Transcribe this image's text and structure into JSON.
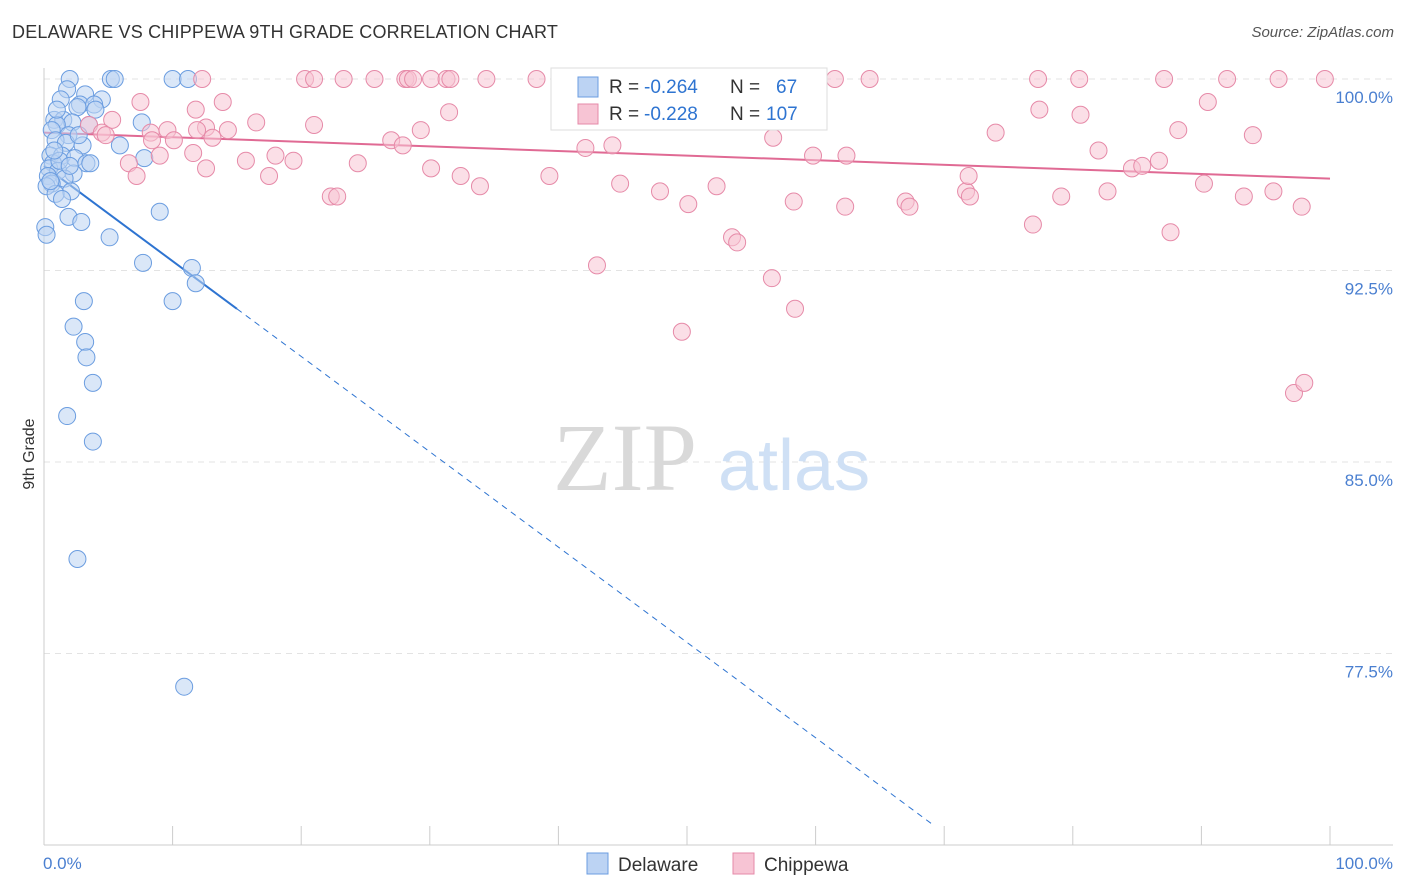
{
  "chart_data": {
    "type": "scatter",
    "title": "DELAWARE VS CHIPPEWA 9TH GRADE CORRELATION CHART",
    "source": "Source: ZipAtlas.com",
    "xlabel": "",
    "ylabel": "9th Grade",
    "xlim": [
      0,
      100
    ],
    "ylim": [
      70.5,
      101.5
    ],
    "y_ticks": [
      {
        "value": 100.0,
        "label": "100.0%"
      },
      {
        "value": 92.5,
        "label": "92.5%"
      },
      {
        "value": 85.0,
        "label": "85.0%"
      },
      {
        "value": 77.5,
        "label": "77.5%"
      }
    ],
    "x_tick_labels": {
      "left": "0.0%",
      "right": "100.0%"
    },
    "grid": true,
    "watermark": {
      "zip": "ZIP",
      "atlas": "atlas"
    },
    "legend": {
      "position": "top-center",
      "entries": [
        {
          "r_label": "R =",
          "r_value": "-0.264",
          "n_label": "N =",
          "n_value": "67"
        },
        {
          "r_label": "R =",
          "r_value": "-0.228",
          "n_label": "N =",
          "n_value": "107"
        }
      ]
    },
    "series": [
      {
        "name": "Delaware",
        "color": "#6b9de0",
        "fill": "#bcd3f3",
        "line_color": "#2e74d1",
        "trend": {
          "x0": 0,
          "y0": 96.6,
          "x1": 15,
          "y1": 91.0,
          "dash_to_x": 69
        },
        "points": [
          [
            2.0,
            100
          ],
          [
            5.2,
            100
          ],
          [
            5.5,
            100
          ],
          [
            10.0,
            100
          ],
          [
            11.2,
            100
          ],
          [
            1.8,
            99.6
          ],
          [
            3.2,
            99.4
          ],
          [
            1.3,
            99.2
          ],
          [
            4.5,
            99.2
          ],
          [
            2.8,
            99.0
          ],
          [
            3.9,
            99.0
          ],
          [
            2.6,
            98.9
          ],
          [
            0.8,
            98.4
          ],
          [
            1.5,
            98.4
          ],
          [
            2.2,
            98.3
          ],
          [
            1.0,
            98.2
          ],
          [
            3.5,
            98.2
          ],
          [
            0.6,
            98.0
          ],
          [
            1.9,
            97.8
          ],
          [
            7.6,
            98.3
          ],
          [
            0.9,
            97.6
          ],
          [
            1.7,
            97.5
          ],
          [
            3.0,
            97.4
          ],
          [
            5.9,
            97.4
          ],
          [
            0.5,
            97.0
          ],
          [
            1.4,
            97.0
          ],
          [
            2.4,
            96.9
          ],
          [
            7.8,
            96.9
          ],
          [
            0.7,
            96.7
          ],
          [
            3.3,
            96.7
          ],
          [
            3.6,
            96.7
          ],
          [
            0.4,
            96.5
          ],
          [
            1.1,
            96.4
          ],
          [
            2.3,
            96.3
          ],
          [
            0.3,
            96.2
          ],
          [
            1.6,
            96.1
          ],
          [
            0.6,
            95.9
          ],
          [
            0.2,
            95.8
          ],
          [
            2.1,
            95.6
          ],
          [
            0.9,
            95.5
          ],
          [
            9.0,
            94.8
          ],
          [
            1.9,
            94.6
          ],
          [
            2.9,
            94.4
          ],
          [
            0.1,
            94.2
          ],
          [
            0.2,
            93.9
          ],
          [
            5.1,
            93.8
          ],
          [
            7.7,
            92.8
          ],
          [
            11.5,
            92.6
          ],
          [
            11.8,
            92.0
          ],
          [
            3.1,
            91.3
          ],
          [
            10.0,
            91.3
          ],
          [
            2.3,
            90.3
          ],
          [
            3.2,
            89.7
          ],
          [
            3.3,
            89.1
          ],
          [
            3.8,
            88.1
          ],
          [
            1.8,
            86.8
          ],
          [
            3.8,
            85.8
          ],
          [
            2.6,
            81.2
          ],
          [
            10.9,
            76.2
          ],
          [
            0.5,
            96.0
          ],
          [
            1.2,
            96.8
          ],
          [
            2.7,
            97.8
          ],
          [
            4.0,
            98.8
          ],
          [
            1.4,
            95.3
          ],
          [
            0.8,
            97.2
          ],
          [
            2.0,
            96.6
          ],
          [
            1.0,
            98.8
          ]
        ]
      },
      {
        "name": "Chippewa",
        "color": "#e68aa8",
        "fill": "#f7c4d4",
        "line_color": "#e06a94",
        "trend": {
          "x0": 0,
          "y0": 97.9,
          "x1": 100,
          "y1": 96.1
        },
        "points": [
          [
            12.3,
            100
          ],
          [
            20.3,
            100
          ],
          [
            21.0,
            100
          ],
          [
            23.3,
            100
          ],
          [
            25.7,
            100
          ],
          [
            28.1,
            100
          ],
          [
            28.3,
            100
          ],
          [
            28.7,
            100
          ],
          [
            30.1,
            100
          ],
          [
            31.3,
            100
          ],
          [
            31.6,
            100
          ],
          [
            34.4,
            100
          ],
          [
            38.3,
            100
          ],
          [
            42.8,
            100
          ],
          [
            46.5,
            100
          ],
          [
            51.3,
            100
          ],
          [
            54.8,
            100
          ],
          [
            57.0,
            100
          ],
          [
            61.5,
            100
          ],
          [
            64.2,
            100
          ],
          [
            77.3,
            100
          ],
          [
            80.5,
            100
          ],
          [
            87.1,
            100
          ],
          [
            92.0,
            100
          ],
          [
            96.0,
            100
          ],
          [
            99.6,
            100
          ],
          [
            7.5,
            99.1
          ],
          [
            13.9,
            99.1
          ],
          [
            11.8,
            98.8
          ],
          [
            31.5,
            98.7
          ],
          [
            42.8,
            98.6
          ],
          [
            58.3,
            98.6
          ],
          [
            77.4,
            98.8
          ],
          [
            80.6,
            98.6
          ],
          [
            90.5,
            99.1
          ],
          [
            5.3,
            98.4
          ],
          [
            16.5,
            98.3
          ],
          [
            21.0,
            98.2
          ],
          [
            29.3,
            98.0
          ],
          [
            12.6,
            98.1
          ],
          [
            11.9,
            98.0
          ],
          [
            14.3,
            98.0
          ],
          [
            8.3,
            97.9
          ],
          [
            9.6,
            98.0
          ],
          [
            3.5,
            98.2
          ],
          [
            4.5,
            97.9
          ],
          [
            10.1,
            97.6
          ],
          [
            13.1,
            97.7
          ],
          [
            27.0,
            97.6
          ],
          [
            27.9,
            97.4
          ],
          [
            42.1,
            97.3
          ],
          [
            44.2,
            97.4
          ],
          [
            56.7,
            97.7
          ],
          [
            74.0,
            97.9
          ],
          [
            88.2,
            98.0
          ],
          [
            94.0,
            97.8
          ],
          [
            4.8,
            97.8
          ],
          [
            8.4,
            97.6
          ],
          [
            11.6,
            97.1
          ],
          [
            18.0,
            97.0
          ],
          [
            9.0,
            97.0
          ],
          [
            6.6,
            96.7
          ],
          [
            15.7,
            96.8
          ],
          [
            19.4,
            96.8
          ],
          [
            24.4,
            96.7
          ],
          [
            30.1,
            96.5
          ],
          [
            59.8,
            97.0
          ],
          [
            62.4,
            97.0
          ],
          [
            82.0,
            97.2
          ],
          [
            84.6,
            96.5
          ],
          [
            85.4,
            96.6
          ],
          [
            86.7,
            96.8
          ],
          [
            12.6,
            96.5
          ],
          [
            7.2,
            96.2
          ],
          [
            17.5,
            96.2
          ],
          [
            32.4,
            96.2
          ],
          [
            39.3,
            96.2
          ],
          [
            33.9,
            95.8
          ],
          [
            44.8,
            95.9
          ],
          [
            47.9,
            95.6
          ],
          [
            52.3,
            95.8
          ],
          [
            58.3,
            95.2
          ],
          [
            67.0,
            95.2
          ],
          [
            71.7,
            95.6
          ],
          [
            72.0,
            95.4
          ],
          [
            79.1,
            95.4
          ],
          [
            82.7,
            95.6
          ],
          [
            90.2,
            95.9
          ],
          [
            95.6,
            95.6
          ],
          [
            97.8,
            95.0
          ],
          [
            50.1,
            95.1
          ],
          [
            67.3,
            95.0
          ],
          [
            62.3,
            95.0
          ],
          [
            22.3,
            95.4
          ],
          [
            22.8,
            95.4
          ],
          [
            71.9,
            96.2
          ],
          [
            53.5,
            93.8
          ],
          [
            43.0,
            92.7
          ],
          [
            53.9,
            93.6
          ],
          [
            76.9,
            94.3
          ],
          [
            93.3,
            95.4
          ],
          [
            87.6,
            94.0
          ],
          [
            56.6,
            92.2
          ],
          [
            58.4,
            91.0
          ],
          [
            49.6,
            90.1
          ],
          [
            97.2,
            87.7
          ],
          [
            98.0,
            88.1
          ]
        ]
      }
    ]
  }
}
